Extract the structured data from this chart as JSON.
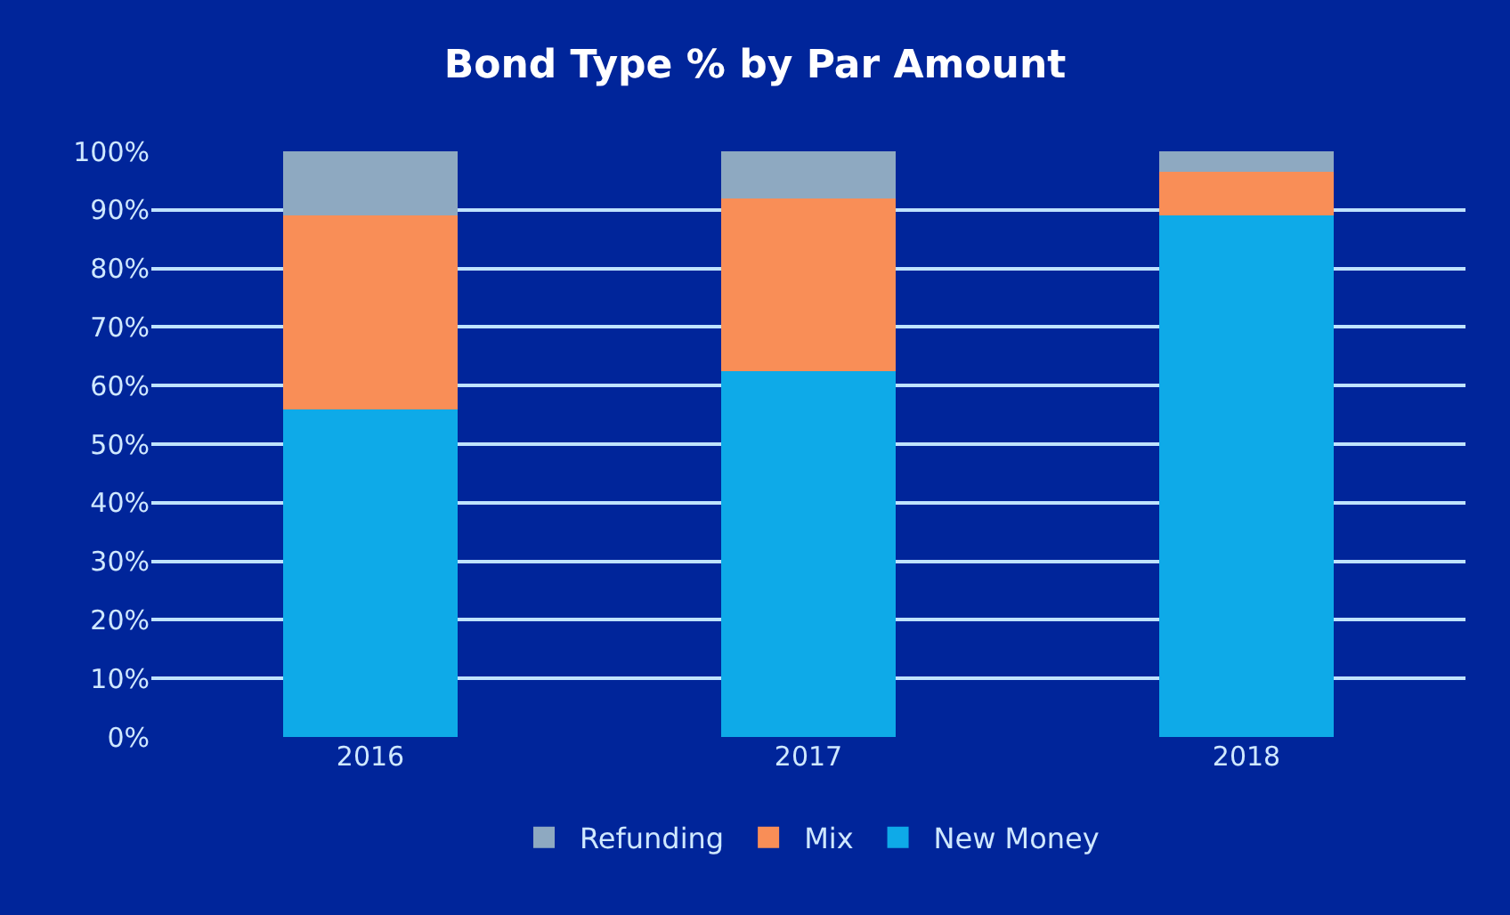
{
  "chart_data": {
    "type": "bar",
    "title": "Bond Type % by Par Amount",
    "categories": [
      "2016",
      "2017",
      "2018"
    ],
    "stacked": true,
    "series": [
      {
        "name": "New Money",
        "color": "#0eaae8",
        "values": [
          56,
          62.5,
          89
        ]
      },
      {
        "name": "Mix",
        "color": "#f98e57",
        "values": [
          33,
          29.5,
          7.5
        ]
      },
      {
        "name": "Refunding",
        "color": "#8ea9c1",
        "values": [
          11,
          8,
          3.5
        ]
      }
    ],
    "ylim": [
      0,
      100
    ],
    "yticks": [
      {
        "value": 0,
        "label": "0%"
      },
      {
        "value": 10,
        "label": "10%"
      },
      {
        "value": 20,
        "label": "20%"
      },
      {
        "value": 30,
        "label": "30%"
      },
      {
        "value": 40,
        "label": "40%"
      },
      {
        "value": 50,
        "label": "50%"
      },
      {
        "value": 60,
        "label": "60%"
      },
      {
        "value": 70,
        "label": "70%"
      },
      {
        "value": 80,
        "label": "80%"
      },
      {
        "value": 90,
        "label": "90%"
      },
      {
        "value": 100,
        "label": "100%"
      }
    ],
    "grid": "y",
    "legend": "bottom"
  }
}
